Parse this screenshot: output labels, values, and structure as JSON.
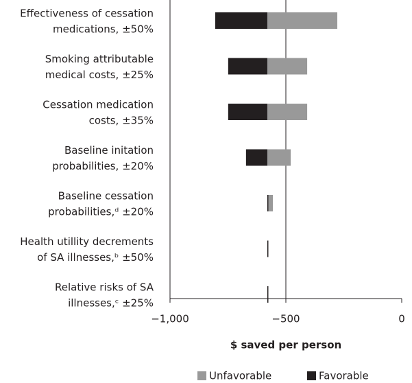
{
  "chart_data": {
    "type": "tornado",
    "xlabel": "$ saved per person",
    "categories": [
      [
        "Effectiveness of cessation",
        "medications, ±50%"
      ],
      [
        "Smoking attributable",
        "medical costs, ±25%"
      ],
      [
        "Cessation medication",
        "costs, ±35%"
      ],
      [
        "Baseline initation",
        "probabilities, ±20%"
      ],
      [
        "Baseline cessation",
        "probabilities,ᵈ ±20%"
      ],
      [
        "Health utillity decrements",
        "of SA illnesses,ᵇ ±50%"
      ],
      [
        "Relative risks of SA",
        "illnesses,ᶜ ±25%"
      ]
    ],
    "base": -580,
    "series": [
      {
        "name": "Unfavorable",
        "color": "#999999",
        "values": [
          -278,
          -408,
          -408,
          -479,
          -556,
          -578,
          -578
        ]
      },
      {
        "name": "Favorable",
        "color": "#231f20",
        "values": [
          -805,
          -749,
          -749,
          -672,
          -580,
          -580,
          -580
        ]
      }
    ],
    "xlim": [
      -1000,
      0
    ],
    "xticks": [
      {
        "value": -1000,
        "label": "−1,000"
      },
      {
        "value": -500,
        "label": "−500"
      },
      0
    ],
    "grid": true
  }
}
